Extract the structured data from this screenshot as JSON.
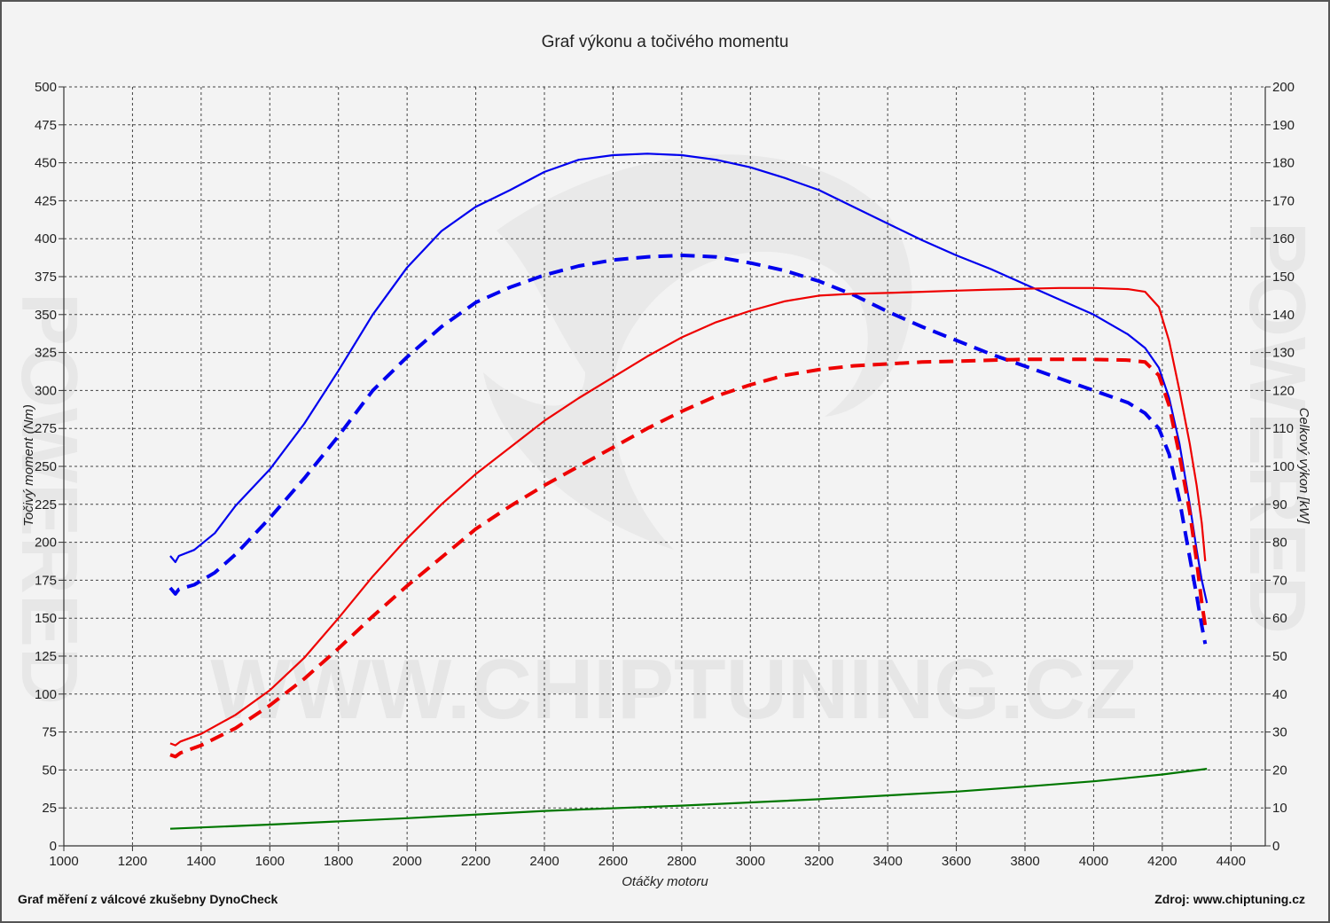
{
  "chart_data": {
    "type": "line",
    "title": "Graf výkonu a točivého momentu",
    "xlabel": "Otáčky motoru",
    "ylabel_left": "Točivý moment (Nm)",
    "ylabel_right": "Celkový výkon [kW]",
    "xlim": [
      1000,
      4500
    ],
    "ylim_left": [
      0,
      500
    ],
    "ylim_right": [
      0,
      200
    ],
    "x_ticks": [
      1000,
      1200,
      1400,
      1600,
      1800,
      2000,
      2200,
      2400,
      2600,
      2800,
      3000,
      3200,
      3400,
      3600,
      3800,
      4000,
      4200,
      4400
    ],
    "y_ticks_left": [
      0,
      25,
      50,
      75,
      100,
      125,
      150,
      175,
      200,
      225,
      250,
      275,
      300,
      325,
      350,
      375,
      400,
      425,
      450,
      475,
      500
    ],
    "y_ticks_right": [
      0,
      10,
      20,
      30,
      40,
      50,
      60,
      70,
      80,
      90,
      100,
      110,
      120,
      130,
      140,
      150,
      160,
      170,
      180,
      190,
      200
    ],
    "grid": true,
    "series": [
      {
        "axis": "left",
        "color": "#0000ee",
        "dash": "solid",
        "points": [
          [
            1310,
            191
          ],
          [
            1325,
            187
          ],
          [
            1335,
            191
          ],
          [
            1380,
            195
          ],
          [
            1440,
            206
          ],
          [
            1500,
            224
          ],
          [
            1600,
            248
          ],
          [
            1700,
            278
          ],
          [
            1800,
            313
          ],
          [
            1900,
            350
          ],
          [
            2000,
            381
          ],
          [
            2100,
            405
          ],
          [
            2200,
            421
          ],
          [
            2300,
            432
          ],
          [
            2400,
            444
          ],
          [
            2500,
            452
          ],
          [
            2600,
            455
          ],
          [
            2700,
            456
          ],
          [
            2800,
            455
          ],
          [
            2900,
            452
          ],
          [
            3000,
            447
          ],
          [
            3100,
            440
          ],
          [
            3200,
            432
          ],
          [
            3300,
            421
          ],
          [
            3400,
            410
          ],
          [
            3500,
            399
          ],
          [
            3600,
            389
          ],
          [
            3700,
            380
          ],
          [
            3800,
            370
          ],
          [
            3900,
            360
          ],
          [
            4000,
            350
          ],
          [
            4100,
            337
          ],
          [
            4150,
            328
          ],
          [
            4190,
            315
          ],
          [
            4220,
            295
          ],
          [
            4250,
            265
          ],
          [
            4280,
            225
          ],
          [
            4300,
            195
          ],
          [
            4315,
            175
          ],
          [
            4330,
            160
          ]
        ]
      },
      {
        "axis": "left",
        "color": "#0000ee",
        "dash": "dashed",
        "points": [
          [
            1310,
            170
          ],
          [
            1325,
            166
          ],
          [
            1335,
            169
          ],
          [
            1380,
            172
          ],
          [
            1440,
            180
          ],
          [
            1500,
            192
          ],
          [
            1600,
            216
          ],
          [
            1700,
            242
          ],
          [
            1800,
            270
          ],
          [
            1900,
            300
          ],
          [
            2000,
            322
          ],
          [
            2100,
            342
          ],
          [
            2200,
            358
          ],
          [
            2300,
            368
          ],
          [
            2400,
            376
          ],
          [
            2500,
            382
          ],
          [
            2600,
            386
          ],
          [
            2700,
            388
          ],
          [
            2800,
            389
          ],
          [
            2900,
            388
          ],
          [
            3000,
            384
          ],
          [
            3100,
            379
          ],
          [
            3200,
            372
          ],
          [
            3300,
            363
          ],
          [
            3400,
            352
          ],
          [
            3500,
            342
          ],
          [
            3600,
            333
          ],
          [
            3700,
            324
          ],
          [
            3800,
            316
          ],
          [
            3900,
            308
          ],
          [
            4000,
            300
          ],
          [
            4100,
            292
          ],
          [
            4150,
            285
          ],
          [
            4190,
            275
          ],
          [
            4220,
            258
          ],
          [
            4250,
            228
          ],
          [
            4280,
            190
          ],
          [
            4300,
            165
          ],
          [
            4315,
            145
          ],
          [
            4325,
            133
          ]
        ]
      },
      {
        "axis": "right",
        "color": "#ee0000",
        "dash": "solid",
        "points": [
          [
            1310,
            27
          ],
          [
            1325,
            26.5
          ],
          [
            1340,
            27.5
          ],
          [
            1400,
            29.5
          ],
          [
            1500,
            34.5
          ],
          [
            1600,
            41
          ],
          [
            1700,
            49.5
          ],
          [
            1800,
            60
          ],
          [
            1900,
            71
          ],
          [
            2000,
            81
          ],
          [
            2100,
            90
          ],
          [
            2200,
            98
          ],
          [
            2300,
            105
          ],
          [
            2400,
            112
          ],
          [
            2500,
            118
          ],
          [
            2600,
            123.5
          ],
          [
            2700,
            129
          ],
          [
            2800,
            134
          ],
          [
            2900,
            138
          ],
          [
            3000,
            141
          ],
          [
            3100,
            143.5
          ],
          [
            3200,
            145
          ],
          [
            3300,
            145.5
          ],
          [
            3400,
            145.7
          ],
          [
            3500,
            146
          ],
          [
            3600,
            146.3
          ],
          [
            3700,
            146.6
          ],
          [
            3800,
            146.8
          ],
          [
            3900,
            147
          ],
          [
            4000,
            147
          ],
          [
            4100,
            146.7
          ],
          [
            4150,
            146
          ],
          [
            4190,
            142
          ],
          [
            4220,
            133
          ],
          [
            4250,
            120
          ],
          [
            4280,
            106
          ],
          [
            4300,
            95
          ],
          [
            4315,
            85
          ],
          [
            4325,
            75
          ]
        ]
      },
      {
        "axis": "right",
        "color": "#ee0000",
        "dash": "dashed",
        "points": [
          [
            1310,
            24
          ],
          [
            1325,
            23.5
          ],
          [
            1340,
            24.5
          ],
          [
            1400,
            26.5
          ],
          [
            1500,
            31
          ],
          [
            1600,
            37
          ],
          [
            1700,
            44
          ],
          [
            1800,
            52
          ],
          [
            1900,
            60.5
          ],
          [
            2000,
            68.5
          ],
          [
            2100,
            76
          ],
          [
            2200,
            83.5
          ],
          [
            2300,
            89.5
          ],
          [
            2400,
            95
          ],
          [
            2500,
            100
          ],
          [
            2600,
            105
          ],
          [
            2700,
            110
          ],
          [
            2800,
            114.5
          ],
          [
            2900,
            118.5
          ],
          [
            3000,
            121.5
          ],
          [
            3100,
            124
          ],
          [
            3200,
            125.5
          ],
          [
            3300,
            126.5
          ],
          [
            3400,
            127
          ],
          [
            3500,
            127.5
          ],
          [
            3600,
            127.7
          ],
          [
            3700,
            128
          ],
          [
            3800,
            128.2
          ],
          [
            3900,
            128.2
          ],
          [
            4000,
            128.2
          ],
          [
            4100,
            128
          ],
          [
            4150,
            127.5
          ],
          [
            4190,
            124
          ],
          [
            4220,
            116
          ],
          [
            4250,
            103
          ],
          [
            4280,
            88
          ],
          [
            4300,
            75
          ],
          [
            4315,
            64
          ],
          [
            4325,
            58
          ]
        ]
      },
      {
        "axis": "right",
        "color": "#007700",
        "dash": "solid",
        "points": [
          [
            1310,
            4.5
          ],
          [
            1600,
            5.6
          ],
          [
            2000,
            7.3
          ],
          [
            2400,
            9.2
          ],
          [
            2800,
            10.6
          ],
          [
            3200,
            12.3
          ],
          [
            3600,
            14.3
          ],
          [
            3800,
            15.6
          ],
          [
            4000,
            17
          ],
          [
            4200,
            18.8
          ],
          [
            4330,
            20.3
          ]
        ]
      }
    ]
  },
  "footer": {
    "left": "Graf měření z válcové zkušebny DynoCheck",
    "right": "Zdroj: www.chiptuning.cz"
  },
  "watermark": {
    "text": "WWW.CHIPTUNING.CZ",
    "side": "POWERED"
  }
}
